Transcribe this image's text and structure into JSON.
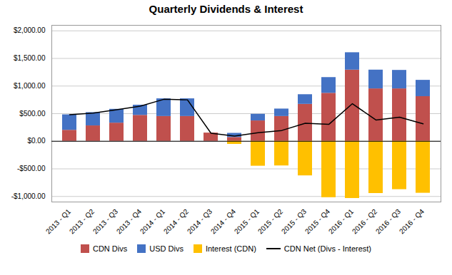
{
  "chart_data": {
    "type": "bar",
    "title": "Quarterly Dividends & Interest",
    "categories": [
      "2013 - Q1",
      "2013 - Q2",
      "2013 - Q3",
      "2013 - Q4",
      "2014 - Q1",
      "2014 - Q2",
      "2014 - Q3",
      "2014 - Q4",
      "2015 - Q1",
      "2015 - Q2",
      "2015 - Q3",
      "2015 - Q4",
      "2016 - Q1",
      "2016 - Q2",
      "2016 - Q3",
      "2016 - Q4"
    ],
    "stacked": true,
    "series": [
      {
        "name": "CDN Divs",
        "color": "#C0504D",
        "values": [
          200,
          280,
          330,
          470,
          450,
          450,
          150,
          70,
          370,
          450,
          670,
          870,
          1290,
          950,
          950,
          810
        ]
      },
      {
        "name": "USD Divs",
        "color": "#4472C4",
        "values": [
          280,
          240,
          250,
          185,
          320,
          320,
          0,
          75,
          120,
          135,
          175,
          285,
          315,
          340,
          335,
          295
        ]
      },
      {
        "name": "Interest (CDN)",
        "color": "#FFC000",
        "values": [
          0,
          0,
          0,
          0,
          0,
          0,
          0,
          -55,
          -450,
          -445,
          -625,
          -1020,
          -1035,
          -945,
          -875,
          -940
        ]
      },
      {
        "name": "CDN Net (Divs - Interest)",
        "type": "line",
        "color": "#000000",
        "values": [
          480,
          510,
          570,
          635,
          760,
          750,
          145,
          95,
          155,
          195,
          325,
          305,
          680,
          385,
          435,
          315
        ]
      }
    ],
    "ylim": [
      -1100,
      2100
    ],
    "yticks": [
      {
        "value": -1000,
        "label": "-$1,000.00"
      },
      {
        "value": -500,
        "label": "-$500.00"
      },
      {
        "value": 0,
        "label": "$0.00"
      },
      {
        "value": 500,
        "label": "$500.00"
      },
      {
        "value": 1000,
        "label": "$1,000.00"
      },
      {
        "value": 1500,
        "label": "$1,500.00"
      },
      {
        "value": 2000,
        "label": "$2,000.00"
      }
    ],
    "grid": true,
    "legend": "bottom"
  }
}
